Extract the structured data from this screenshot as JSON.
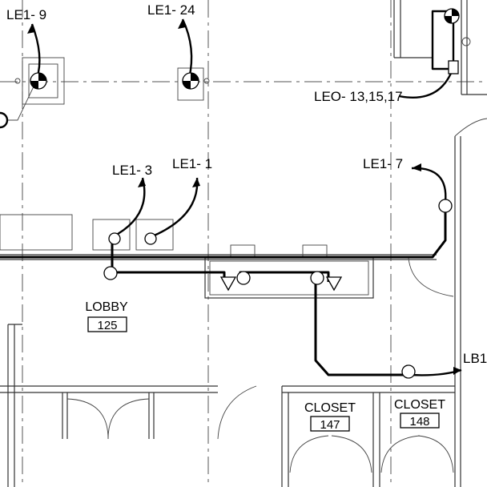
{
  "labels": {
    "le1_9": "LE1- 9",
    "le1_24": "LE1- 24",
    "leo": "LEO- 13,15,17",
    "le1_3": "LE1- 3",
    "le1_1": "LE1- 1",
    "le1_7": "LE1- 7",
    "lb1": "LB1-"
  },
  "rooms": {
    "lobby": {
      "name": "LOBBY",
      "number": "125"
    },
    "closet147": {
      "name": "CLOSET",
      "number": "147"
    },
    "closet148": {
      "name": "CLOSET",
      "number": "148"
    }
  }
}
